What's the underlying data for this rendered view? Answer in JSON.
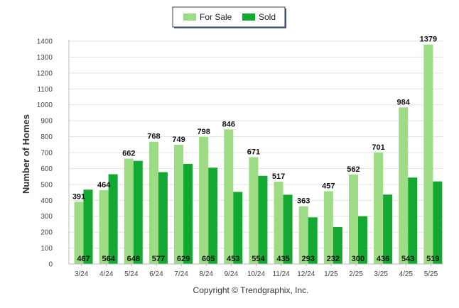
{
  "chart_data": {
    "type": "bar",
    "title": "",
    "xlabel": "",
    "ylabel": "Number of Homes",
    "ylim": [
      0,
      1400
    ],
    "yticks": [
      0,
      100,
      200,
      300,
      400,
      500,
      600,
      700,
      800,
      900,
      1000,
      1100,
      1200,
      1300,
      1400
    ],
    "grid": true,
    "legend_position": "top-center",
    "categories": [
      "3/24",
      "4/24",
      "5/24",
      "6/24",
      "7/24",
      "8/24",
      "9/24",
      "10/24",
      "11/24",
      "12/24",
      "1/25",
      "2/25",
      "3/25",
      "4/25",
      "5/25"
    ],
    "series": [
      {
        "name": "For Sale",
        "color": "#9ddc84",
        "values": [
          391,
          464,
          662,
          768,
          749,
          798,
          846,
          671,
          517,
          363,
          457,
          562,
          701,
          984,
          1379
        ]
      },
      {
        "name": "Sold",
        "color": "#12a832",
        "values": [
          467,
          564,
          648,
          577,
          629,
          605,
          453,
          554,
          435,
          293,
          232,
          300,
          436,
          543,
          519
        ]
      }
    ]
  },
  "footer": {
    "copyright": "Copyright © Trendgraphix, Inc."
  }
}
